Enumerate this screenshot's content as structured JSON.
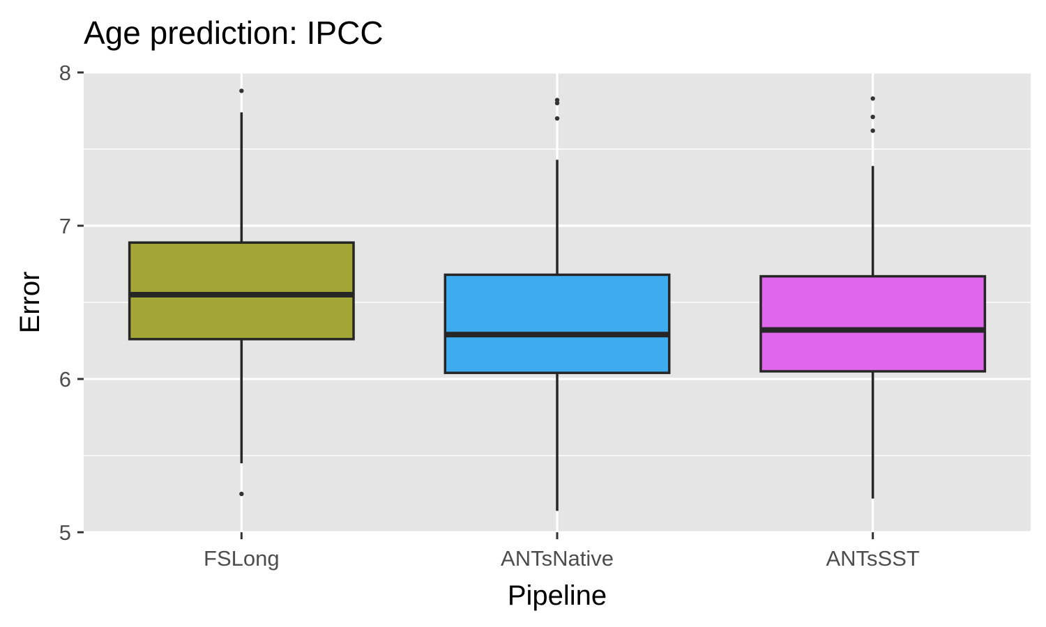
{
  "chart_data": {
    "type": "boxplot",
    "title": "Age prediction: IPCC",
    "xlabel": "Pipeline",
    "ylabel": "Error",
    "ylim": [
      5,
      8
    ],
    "yticks": [
      5,
      6,
      7,
      8
    ],
    "grid": true,
    "legend": "none",
    "categories": [
      "FSLong",
      "ANTsNative",
      "ANTsSST"
    ],
    "boxes": [
      {
        "category": "FSLong",
        "whisker_low": 5.45,
        "q1": 6.26,
        "median": 6.55,
        "q3": 6.89,
        "whisker_high": 7.74,
        "outliers": [
          7.88,
          5.25
        ],
        "color": "#a3a535"
      },
      {
        "category": "ANTsNative",
        "whisker_low": 5.14,
        "q1": 6.04,
        "median": 6.29,
        "q3": 6.68,
        "whisker_high": 7.43,
        "outliers": [
          7.82,
          7.8,
          7.7
        ],
        "color": "#3fabef"
      },
      {
        "category": "ANTsSST",
        "whisker_low": 5.22,
        "q1": 6.05,
        "median": 6.32,
        "q3": 6.67,
        "whisker_high": 7.39,
        "outliers": [
          7.83,
          7.71,
          7.62
        ],
        "color": "#df67eb"
      }
    ]
  }
}
